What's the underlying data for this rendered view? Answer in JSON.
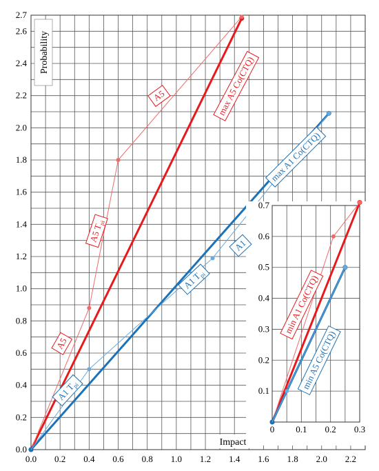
{
  "chart_data": [
    {
      "type": "line",
      "name": "main",
      "xlabel": "Impact",
      "ylabel": "Probability",
      "xlim": [
        0,
        2.3
      ],
      "ylim": [
        0,
        2.7
      ],
      "x_ticks": [
        "0.0",
        "0.2",
        "0.4",
        "0.6",
        "0.8",
        "1.0",
        "1.2",
        "1.4",
        "1.6",
        "1.8",
        "2.0",
        "2.2"
      ],
      "y_ticks": [
        "0.0",
        "0.2",
        "0.4",
        "0.6",
        "0.8",
        "1.0",
        "1.2",
        "1.4",
        "1.6",
        "1.8",
        "2.0",
        "2.2",
        "2.4",
        "2.6",
        "2.7"
      ],
      "grid": true,
      "series": [
        {
          "key": "a5_max",
          "color": "#e8191c",
          "style": "thick",
          "points": [
            [
              0,
              0
            ],
            [
              1.45,
              2.68
            ]
          ]
        },
        {
          "key": "a5_pts",
          "color": "#f06a6a",
          "style": "thin",
          "points": [
            [
              0,
              0
            ],
            [
              0.4,
              0.88
            ],
            [
              0.6,
              1.8
            ],
            [
              1.45,
              2.69
            ]
          ]
        },
        {
          "key": "a1_max",
          "color": "#1c72b8",
          "style": "thick",
          "points": [
            [
              0,
              0
            ],
            [
              2.05,
              2.09
            ]
          ]
        },
        {
          "key": "a1_pts",
          "color": "#6aa9dc",
          "style": "thin",
          "points": [
            [
              0,
              0
            ],
            [
              0.4,
              0.5
            ],
            [
              1.25,
              1.19
            ],
            [
              2.05,
              2.09
            ]
          ]
        }
      ],
      "annotations": [
        {
          "key": "a5_upper",
          "text": "A5",
          "x": 0.88,
          "y": 2.2,
          "angle": -36,
          "color": "#e8191c"
        },
        {
          "key": "a5_lower",
          "text": "A5",
          "x": 0.21,
          "y": 0.66,
          "angle": -60,
          "color": "#e8191c"
        },
        {
          "key": "a5_tpi",
          "text": "A5 T",
          "sub": "pi",
          "x": 0.45,
          "y": 1.36,
          "angle": -72,
          "color": "#e8191c"
        },
        {
          "key": "a5_max_label",
          "text": "max A5 Co(CTQ)",
          "x": 1.41,
          "y": 2.26,
          "angle": -62,
          "color": "#e8191c"
        },
        {
          "key": "a1_upper",
          "text": "A1",
          "x": 1.44,
          "y": 1.27,
          "angle": -43,
          "color": "#1c72b8"
        },
        {
          "key": "a1_tpi_mid",
          "text": "A1 T",
          "sub": "pi",
          "x": 1.12,
          "y": 1.06,
          "angle": -43,
          "color": "#1c72b8"
        },
        {
          "key": "a1_tpi_low",
          "text": "A1 T",
          "sub": "pi",
          "x": 0.25,
          "y": 0.37,
          "angle": -47,
          "color": "#1c72b8"
        },
        {
          "key": "a1_max_label",
          "text": "max A1 Co(CTQ)",
          "x": 1.82,
          "y": 1.82,
          "angle": -45,
          "color": "#1c72b8"
        }
      ]
    },
    {
      "type": "line",
      "name": "inset",
      "xlim": [
        0,
        0.3
      ],
      "ylim": [
        0,
        0.7
      ],
      "x_ticks": [
        "0",
        "0.1",
        "0.2",
        "0.3"
      ],
      "y_ticks": [
        "0.1",
        "0.2",
        "0.3",
        "0.4",
        "0.5",
        "0.6",
        "0.7"
      ],
      "grid": true,
      "series": [
        {
          "key": "min_a1",
          "color": "#e8191c",
          "style": "thick",
          "points": [
            [
              0,
              0
            ],
            [
              0.3,
              0.71
            ]
          ]
        },
        {
          "key": "min_a1_pts",
          "color": "#f06a6a",
          "style": "thin",
          "points": [
            [
              0,
              0
            ],
            [
              0.21,
              0.6
            ],
            [
              0.3,
              0.71
            ]
          ]
        },
        {
          "key": "min_a5",
          "color": "#1c72b8",
          "style": "thick",
          "points": [
            [
              0,
              0
            ],
            [
              0.25,
              0.5
            ]
          ]
        },
        {
          "key": "min_a5_pts",
          "color": "#6aa9dc",
          "style": "thin",
          "points": [
            [
              0,
              0
            ],
            [
              0.05,
              0.1
            ],
            [
              0.25,
              0.5
            ]
          ]
        }
      ],
      "annotations": [
        {
          "key": "min_a1_label",
          "text": "min A1 Co(CTQ)",
          "x": 0.1,
          "y": 0.38,
          "angle": -64,
          "color": "#e8191c"
        },
        {
          "key": "min_a5_label",
          "text": "min A5 Co(CTQ)",
          "x": 0.16,
          "y": 0.2,
          "angle": -64,
          "color": "#1c72b8"
        }
      ]
    }
  ]
}
